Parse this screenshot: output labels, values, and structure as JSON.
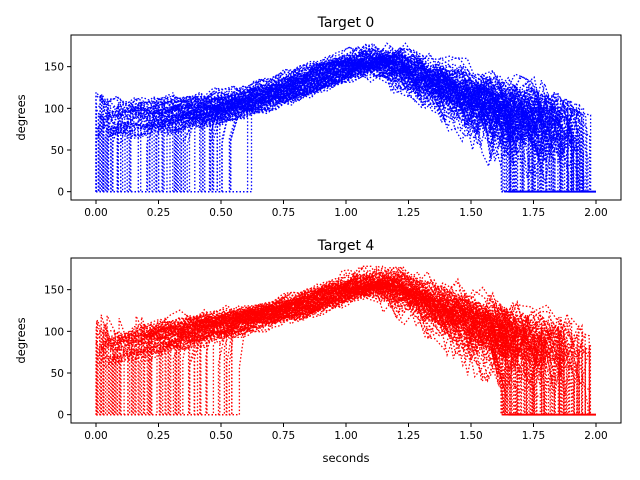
{
  "chart_data": [
    {
      "type": "line",
      "title": "Target 0",
      "xlabel": "",
      "ylabel": "degrees",
      "xlim": [
        -0.1,
        2.1
      ],
      "ylim": [
        -10,
        188
      ],
      "xticks": [
        "0.00",
        "0.25",
        "0.50",
        "0.75",
        "1.00",
        "1.25",
        "1.50",
        "1.75",
        "2.00"
      ],
      "yticks": [
        "0",
        "50",
        "100",
        "150"
      ],
      "line_style": "dotted",
      "color": "#0000ff",
      "trial_count": 110,
      "mean_profile": {
        "x": [
          0.0,
          0.25,
          0.5,
          0.75,
          1.0,
          1.1,
          1.25,
          1.5,
          1.65,
          1.75,
          2.0
        ],
        "y": [
          85,
          90,
          100,
          120,
          150,
          160,
          150,
          110,
          0,
          0,
          0
        ]
      }
    },
    {
      "type": "line",
      "title": "Target 4",
      "xlabel": "seconds",
      "ylabel": "degrees",
      "xlim": [
        -0.1,
        2.1
      ],
      "ylim": [
        -10,
        188
      ],
      "xticks": [
        "0.00",
        "0.25",
        "0.50",
        "0.75",
        "1.00",
        "1.25",
        "1.50",
        "1.75",
        "2.00"
      ],
      "yticks": [
        "0",
        "50",
        "100",
        "150"
      ],
      "line_style": "dotted",
      "color": "#ff0000",
      "trial_count": 110,
      "mean_profile": {
        "x": [
          0.0,
          0.25,
          0.5,
          0.75,
          1.0,
          1.1,
          1.25,
          1.5,
          1.65,
          1.75,
          2.0
        ],
        "y": [
          80,
          95,
          110,
          125,
          150,
          160,
          150,
          110,
          0,
          0,
          0
        ]
      }
    }
  ]
}
